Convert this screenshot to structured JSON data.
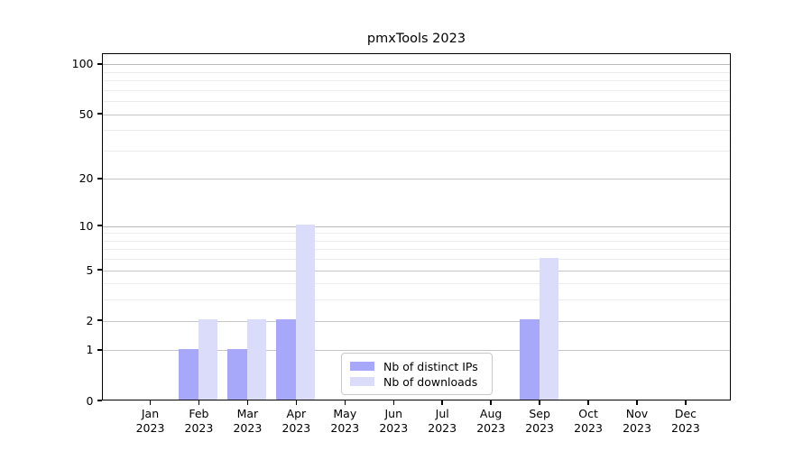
{
  "chart_data": {
    "type": "bar",
    "title": "pmxTools 2023",
    "year": "2023",
    "categories": [
      "Jan",
      "Feb",
      "Mar",
      "Apr",
      "May",
      "Jun",
      "Jul",
      "Aug",
      "Sep",
      "Oct",
      "Nov",
      "Dec"
    ],
    "series": [
      {
        "name": "Nb of distinct IPs",
        "color": "#a8a8fa",
        "values": [
          0,
          1,
          1,
          2,
          0,
          0,
          0,
          0,
          2,
          0,
          0,
          0
        ]
      },
      {
        "name": "Nb of downloads",
        "color": "#dbdbfa",
        "values": [
          0,
          2,
          2,
          10,
          0,
          0,
          0,
          0,
          6,
          0,
          0,
          0
        ]
      }
    ],
    "y_axis": {
      "scale": "log1p",
      "ticks": [
        0,
        1,
        2,
        5,
        10,
        20,
        50,
        100
      ],
      "tick_labels": [
        "0",
        "1",
        "2",
        "5",
        "10",
        "20",
        "50",
        "100"
      ],
      "minor_gridlines": [
        3,
        4,
        6,
        7,
        8,
        9,
        30,
        40,
        60,
        70,
        80,
        90
      ],
      "ylim": [
        0,
        117
      ]
    },
    "grid": true,
    "legend_position": "lower center",
    "colors": {
      "major_grid": "#c6c6c6",
      "minor_grid": "#ececec",
      "axis": "#000000"
    }
  }
}
